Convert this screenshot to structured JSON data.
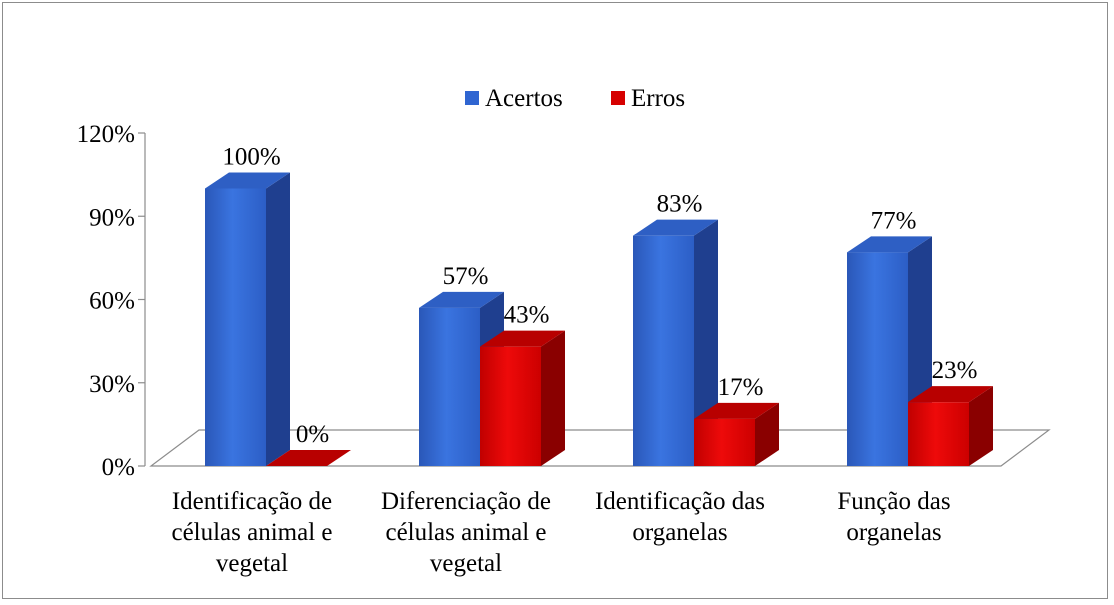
{
  "chart_data": {
    "type": "bar",
    "title": "",
    "xlabel": "",
    "ylabel": "",
    "ylim": [
      0,
      120
    ],
    "yticks": [
      "0%",
      "30%",
      "60%",
      "90%",
      "120%"
    ],
    "ytick_values": [
      0,
      30,
      60,
      90,
      120
    ],
    "categories": [
      "Identificação de células animal e vegetal",
      "Diferenciação de células animal e vegetal",
      "Identificação das organelas",
      "Função  das organelas"
    ],
    "category_lines": [
      [
        "Identificação de",
        "células animal e",
        "vegetal"
      ],
      [
        "Diferenciação de",
        "células animal e",
        "vegetal"
      ],
      [
        "Identificação das",
        "organelas"
      ],
      [
        "Função  das",
        "organelas"
      ]
    ],
    "series": [
      {
        "name": "Acertos",
        "values": [
          100,
          57,
          83,
          77
        ],
        "labels": [
          "100%",
          "57%",
          "83%",
          "77%"
        ],
        "color": "#2f65d1"
      },
      {
        "name": "Erros",
        "values": [
          0,
          43,
          17,
          23
        ],
        "labels": [
          "0%",
          "43%",
          "17%",
          "23%"
        ],
        "color": "#d60000"
      }
    ],
    "legend_position": "top",
    "grid": false,
    "style": "3d-columns"
  }
}
